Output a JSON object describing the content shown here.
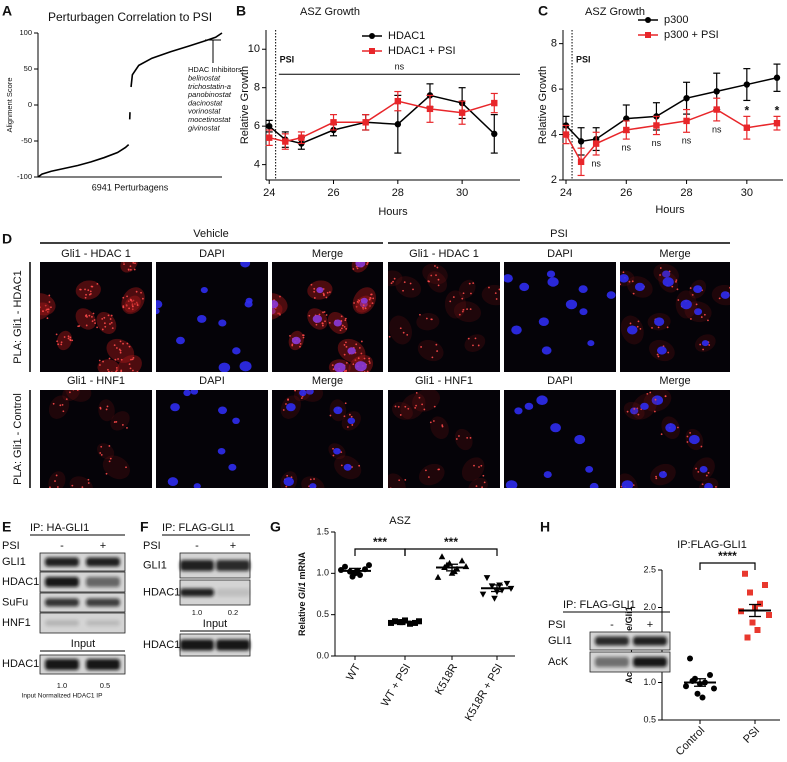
{
  "figure": {
    "panel_labels": [
      "A",
      "B",
      "C",
      "D",
      "E",
      "F",
      "G",
      "H"
    ],
    "D": {
      "groups": [
        "Vehicle",
        "PSI"
      ],
      "row1_columns": [
        "Gli1 - HDAC 1",
        "DAPI",
        "Merge"
      ],
      "row2_columns": [
        "Gli1 - HNF1",
        "DAPI",
        "Merge"
      ],
      "row_labels": [
        "PLA: Gli1 - HDAC1",
        "PLA: Gli1 - Control"
      ]
    },
    "E": {
      "title": "IP: HA-GLI1",
      "treatment": "PSI",
      "lanes": [
        "-",
        "+"
      ],
      "rows": [
        "GLI1",
        "HDAC1",
        "SuFu",
        "HNF1"
      ],
      "input_label": "Input",
      "input_rows": [
        "HDAC1"
      ],
      "quant": [
        "1.0",
        "0.5"
      ],
      "note": "Input Normalized HDAC1 IP"
    },
    "F": {
      "title": "IP: FLAG-GLI1",
      "treatment": "PSI",
      "lanes": [
        "-",
        "+"
      ],
      "rows": [
        "GLI1",
        "HDAC1"
      ],
      "quant": [
        "1.0",
        "0.2"
      ],
      "input_label": "Input",
      "input_rows": [
        "HDAC1"
      ]
    },
    "H_blot": {
      "title": "IP: FLAG-GLI1",
      "treatment": "PSI",
      "lanes": [
        "-",
        "+"
      ],
      "rows": [
        "GLI1",
        "AcK"
      ]
    }
  },
  "chart_data": [
    {
      "type": "line",
      "title": "Perturbagen Correlation to PSI",
      "ylabel": "Alignment Score",
      "xlabel": "6941  Perturbagens",
      "x": [
        0,
        150,
        500,
        1000,
        1500,
        2000,
        2500,
        3000,
        3300,
        3420,
        3440,
        3460,
        3470,
        3490,
        3510,
        3560,
        3800,
        4300,
        5000,
        5700,
        6300,
        6700,
        6941
      ],
      "series": [
        {
          "color": "#000000",
          "values": [
            -100,
            -96,
            -92,
            -88,
            -84,
            -79,
            -73,
            -66,
            -59,
            -55,
            null,
            -20,
            -10,
            null,
            25,
            42,
            55,
            65,
            74,
            82,
            89,
            94,
            100
          ]
        }
      ],
      "xlim": [
        0,
        6941
      ],
      "ylim": [
        -100,
        100
      ],
      "yticks": [
        -100,
        -50,
        0,
        50,
        100
      ],
      "annotation_title": "HDAC Inhibitors",
      "annotation_items": [
        "belinostat",
        "trichostatin-a",
        "panobinostat",
        "dacinostat",
        "vorinostat",
        "mocetinostat",
        "givinostat"
      ]
    },
    {
      "type": "line",
      "title": "ASZ Growth",
      "xlabel": "Hours",
      "ylabel": "Relative Growth",
      "x": [
        24,
        24.5,
        25,
        26,
        27,
        28,
        29,
        30,
        31
      ],
      "series": [
        {
          "name": "HDAC1",
          "color": "#000000",
          "marker": "circle",
          "values": [
            6.0,
            5.3,
            5.1,
            5.8,
            6.2,
            6.1,
            7.6,
            7.2,
            5.6
          ],
          "errors": [
            0.3,
            0.4,
            0.3,
            0.3,
            0.4,
            1.5,
            0.6,
            0.8,
            1.0
          ]
        },
        {
          "name": "HDAC1 + PSI",
          "color": "#e8262a",
          "marker": "square",
          "values": [
            5.4,
            5.2,
            5.4,
            6.2,
            6.2,
            7.3,
            6.9,
            6.7,
            7.2
          ],
          "errors": [
            0.4,
            0.4,
            0.3,
            0.4,
            0.4,
            0.5,
            0.7,
            0.6,
            0.5
          ]
        }
      ],
      "xlim": [
        23.9,
        31.8
      ],
      "xticks": [
        24,
        26,
        28,
        30
      ],
      "ylim": [
        3.2,
        11
      ],
      "yticks": [
        4,
        6,
        8,
        10
      ],
      "legend": "top",
      "marker_line": {
        "label": "PSI",
        "x": 24.2
      },
      "significance": {
        "text": "ns",
        "y": 8.7,
        "x": [
          24.3,
          31.8
        ]
      }
    },
    {
      "type": "line",
      "title": "ASZ Growth",
      "xlabel": "Hours",
      "ylabel": "Relative Growth",
      "x": [
        24,
        24.5,
        25,
        26,
        27,
        28,
        29,
        30,
        31
      ],
      "series": [
        {
          "name": "p300",
          "color": "#000000",
          "marker": "circle",
          "values": [
            4.4,
            3.7,
            3.8,
            4.7,
            4.8,
            5.6,
            5.9,
            6.2,
            6.5
          ],
          "errors": [
            0.4,
            0.6,
            0.5,
            0.6,
            0.6,
            0.7,
            0.8,
            0.7,
            0.6
          ]
        },
        {
          "name": "p300 + PSI",
          "color": "#e8262a",
          "marker": "square",
          "values": [
            4.0,
            2.8,
            3.6,
            4.2,
            4.4,
            4.6,
            5.1,
            4.3,
            4.5
          ],
          "errors": [
            0.4,
            0.6,
            0.5,
            0.4,
            0.4,
            0.5,
            0.5,
            0.5,
            0.3
          ]
        }
      ],
      "xlim": [
        23.9,
        31.2
      ],
      "xticks": [
        24,
        26,
        28,
        30
      ],
      "ylim": [
        2,
        8.6
      ],
      "yticks": [
        2,
        4,
        6,
        8
      ],
      "legend": "top",
      "marker_line": {
        "label": "PSI",
        "x": 24.2
      },
      "annotations": [
        {
          "text": "ns",
          "x": 25,
          "position": "below"
        },
        {
          "text": "ns",
          "x": 26,
          "position": "below"
        },
        {
          "text": "ns",
          "x": 27,
          "position": "below"
        },
        {
          "text": "ns",
          "x": 28,
          "position": "below"
        },
        {
          "text": "ns",
          "x": 29,
          "position": "below"
        },
        {
          "text": "*",
          "x": 30,
          "position": "above"
        },
        {
          "text": "*",
          "x": 31,
          "position": "above"
        }
      ]
    },
    {
      "type": "dot",
      "title": "ASZ",
      "ylabel": [
        "Relative",
        "Gli1",
        "mRNA"
      ],
      "categories": [
        "WT",
        "WT + PSI",
        "K518R",
        "K518R + PSI"
      ],
      "points": [
        [
          1.08,
          1.05,
          1.02,
          0.98,
          1.0,
          1.04,
          1.1,
          0.96,
          1.03
        ],
        [
          0.42,
          0.4,
          0.41,
          0.39,
          0.43,
          0.4,
          0.42,
          0.41
        ],
        [
          1.2,
          1.15,
          1.1,
          1.05,
          1.0,
          0.95,
          1.08,
          1.12,
          1.02,
          1.07
        ],
        [
          0.95,
          0.88,
          0.85,
          0.8,
          0.78,
          0.75,
          0.82,
          0.7,
          0.86
        ]
      ],
      "means": [
        1.03,
        0.41,
        1.07,
        0.82
      ],
      "errors": [
        0.03,
        0.01,
        0.04,
        0.04
      ],
      "markers": [
        "circle",
        "square",
        "triangle-up",
        "triangle-down"
      ],
      "colors": [
        "#000000",
        "#000000",
        "#000000",
        "#000000"
      ],
      "ylim": [
        0,
        1.5
      ],
      "yticks": [
        {
          "value": 0,
          "label": "0.0"
        },
        0.5,
        {
          "value": 1,
          "label": "1.0"
        },
        1.5
      ],
      "significance_labels": [
        "***",
        "***"
      ]
    },
    {
      "type": "dot",
      "title": "IP:FLAG-GLI1",
      "ylabel": [
        "Acetyl  Lysine/Gli1"
      ],
      "categories": [
        "Control",
        "PSI"
      ],
      "points": [
        [
          1.32,
          1.1,
          1.05,
          1.0,
          0.98,
          0.95,
          0.92,
          0.85,
          0.8,
          1.02
        ],
        [
          2.45,
          2.3,
          2.2,
          2.05,
          2.0,
          1.95,
          1.9,
          1.8,
          1.7,
          1.6
        ]
      ],
      "means": [
        1.0,
        1.96
      ],
      "errors": [
        0.05,
        0.08
      ],
      "markers": [
        "circle",
        "square"
      ],
      "colors": [
        "#000000",
        "#e8382e"
      ],
      "ylim": [
        0.5,
        2.5
      ],
      "yticks": [
        0.5,
        {
          "value": 1,
          "label": "1.0"
        },
        1.5,
        {
          "value": 2,
          "label": "2.0"
        },
        2.5
      ],
      "significance_labels": [
        "****"
      ]
    }
  ]
}
